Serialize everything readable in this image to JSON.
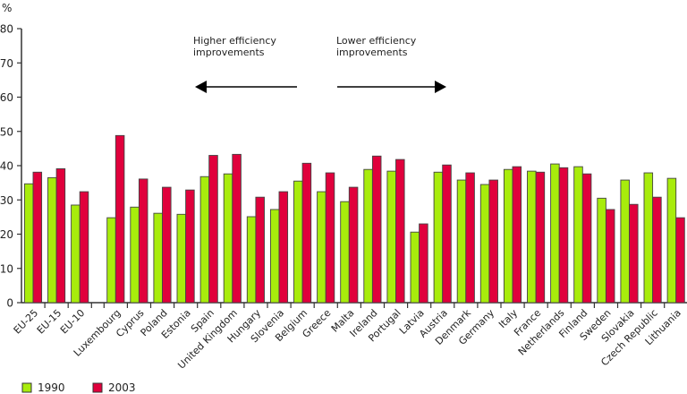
{
  "chart_data": {
    "type": "bar",
    "title": "",
    "xlabel": "",
    "ylabel": "%",
    "ylim": [
      0,
      80
    ],
    "yticks": [
      0,
      10,
      20,
      30,
      40,
      50,
      60,
      70,
      80
    ],
    "grid": false,
    "legend_position": "bottom-left",
    "categories": [
      "EU-25",
      "EU-15",
      "EU-10",
      "",
      "Luxembourg",
      "Cyprus",
      "Poland",
      "Estonia",
      "Spain",
      "United Kingdom",
      "Hungary",
      "Slovenia",
      "Belgium",
      "Greece",
      "Malta",
      "Ireland",
      "Portugal",
      "Latvia",
      "Austria",
      "Denmark",
      "Germany",
      "Italy",
      "France",
      "Netherlands",
      "Finland",
      "Sweden",
      "Slovakia",
      "Czech Republic",
      "Lithuania"
    ],
    "series": [
      {
        "name": "1990",
        "color": "#a8ec0c",
        "values": [
          34.7,
          36.5,
          28.5,
          null,
          24.8,
          27.9,
          26.1,
          25.8,
          36.8,
          37.6,
          25.1,
          27.2,
          35.5,
          32.4,
          29.5,
          38.9,
          38.4,
          20.6,
          38.1,
          35.8,
          34.5,
          38.9,
          38.4,
          40.5,
          39.7,
          30.5,
          35.8,
          37.9,
          36.3
        ]
      },
      {
        "name": "2003",
        "color": "#e0003c",
        "values": [
          38.1,
          39.1,
          32.4,
          null,
          48.8,
          36.1,
          33.7,
          32.9,
          43.0,
          43.3,
          30.8,
          32.4,
          40.7,
          37.9,
          33.7,
          42.8,
          41.8,
          23.0,
          40.2,
          37.9,
          35.8,
          39.7,
          38.1,
          39.4,
          37.6,
          27.2,
          28.7,
          30.8,
          24.8
        ]
      }
    ],
    "annotations": [
      {
        "lines": [
          "Higher efficiency",
          "improvements"
        ],
        "arrow": "left"
      },
      {
        "lines": [
          "Lower efficiency",
          "improvements"
        ],
        "arrow": "right"
      }
    ]
  }
}
